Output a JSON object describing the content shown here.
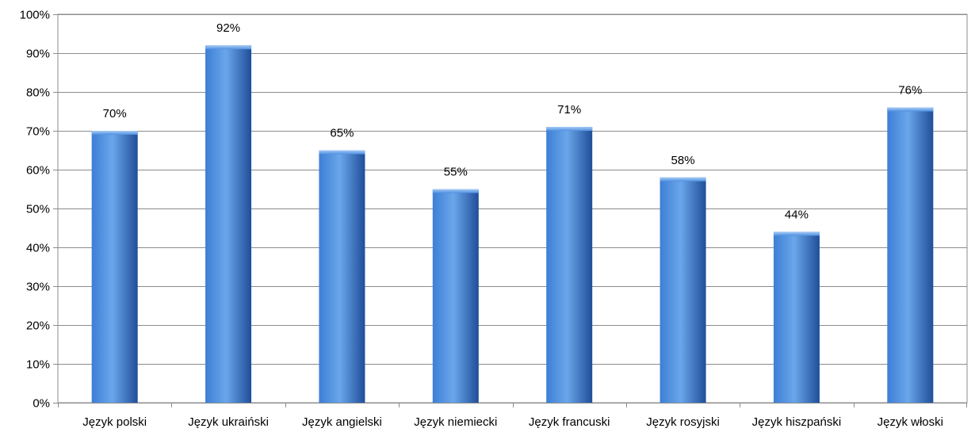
{
  "chart_data": {
    "type": "bar",
    "title": "",
    "xlabel": "",
    "ylabel": "",
    "ylim": [
      0,
      100
    ],
    "y_tick_step": 10,
    "y_tick_format": "percent",
    "grid": true,
    "legend": "none",
    "categories": [
      "Język polski",
      "Język ukraiński",
      "Język angielski",
      "Język niemiecki",
      "Język francuski",
      "Język rosyjski",
      "Język hiszpański",
      "Język włoski"
    ],
    "values": [
      70,
      92,
      65,
      55,
      71,
      58,
      44,
      76
    ],
    "data_labels": [
      "70%",
      "92%",
      "65%",
      "55%",
      "71%",
      "58%",
      "44%",
      "76%"
    ],
    "colors": {
      "bar_light": "#6aa6ea",
      "bar_mid": "#3d7fd6",
      "bar_dark": "#1f4e99",
      "grid": "#8c8c8c",
      "axis": "#8c8c8c"
    }
  }
}
